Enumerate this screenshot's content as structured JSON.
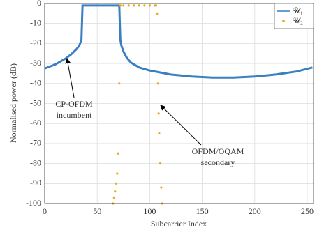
{
  "chart_data": {
    "type": "line",
    "xlabel": "Subcarrier Index",
    "ylabel": "Normalised power (dB)",
    "xlim": [
      0,
      256
    ],
    "ylim": [
      -100,
      0
    ],
    "xticks": [
      0,
      50,
      100,
      150,
      200,
      250
    ],
    "yticks": [
      0,
      -10,
      -20,
      -30,
      -40,
      -50,
      -60,
      -70,
      -80,
      -90,
      -100
    ],
    "grid": true,
    "legend": "upper right",
    "annotations": [
      [
        "CP-OFDM",
        "incumbent"
      ],
      [
        "OFDM/OQAM",
        "secondary"
      ]
    ],
    "series": [
      {
        "name": "𝒰₁",
        "color": "#3a7fc1",
        "mode": "line",
        "x": [
          0,
          5,
          10,
          15,
          20,
          25,
          30,
          33,
          35,
          36,
          40,
          50,
          60,
          70,
          71,
          72,
          73,
          75,
          78,
          82,
          90,
          100,
          120,
          140,
          160,
          180,
          200,
          220,
          240,
          255
        ],
        "values": [
          -32.5,
          -31.5,
          -30.5,
          -29,
          -27.5,
          -25.5,
          -23,
          -21,
          -18,
          -1,
          -1,
          -1,
          -1,
          -1,
          -1,
          -18,
          -21,
          -24,
          -27,
          -29.5,
          -32,
          -33.5,
          -35.5,
          -36.5,
          -37,
          -37,
          -36.5,
          -35.5,
          -34,
          -32
        ]
      },
      {
        "name": "𝒰₂",
        "color": "#e6a817",
        "mode": "markers",
        "x": [
          65,
          66,
          67,
          68,
          69,
          70,
          71,
          72,
          75,
          80,
          85,
          90,
          95,
          100,
          105,
          106,
          107,
          108,
          108.5,
          109,
          110,
          111,
          112
        ],
        "values": [
          -100,
          -97,
          -94,
          -90,
          -85,
          -75,
          -40,
          -1,
          -1,
          -1,
          -1,
          -1,
          -1,
          -1,
          -1,
          -1,
          -5,
          -40,
          -55,
          -65,
          -80,
          -92,
          -100
        ]
      }
    ]
  }
}
